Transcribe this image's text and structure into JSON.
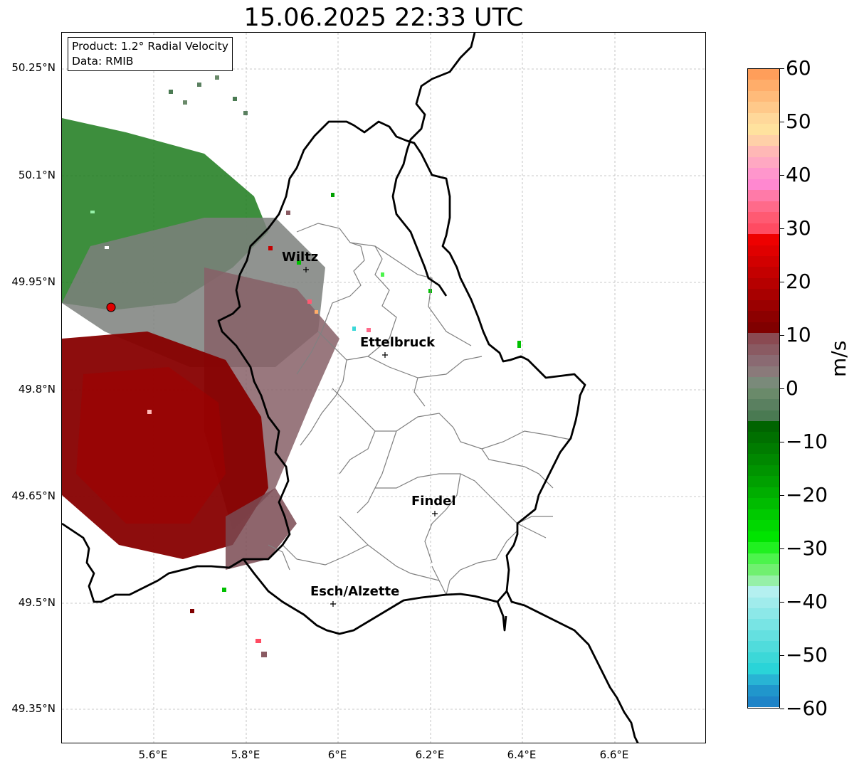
{
  "title": "15.06.2025 22:33 UTC",
  "info": {
    "product": "Product: 1.2° Radial Velocity",
    "data": "Data: RMIB"
  },
  "axes": {
    "lat_ticks": [
      "50.25°N",
      "50.1°N",
      "49.95°N",
      "49.8°N",
      "49.65°N",
      "49.5°N",
      "49.35°N"
    ],
    "lon_ticks": [
      "5.6°E",
      "5.8°E",
      "6°E",
      "6.2°E",
      "6.4°E",
      "6.6°E"
    ]
  },
  "cities": [
    {
      "name": "Wiltz",
      "lon": 5.93,
      "lat": 49.97
    },
    {
      "name": "Ettelbruck",
      "lon": 6.1,
      "lat": 49.85
    },
    {
      "name": "Findel",
      "lon": 6.21,
      "lat": 49.63
    },
    {
      "name": "Esch/Alzette",
      "lon": 5.99,
      "lat": 49.5
    }
  ],
  "radar_site": {
    "lon": 5.505,
    "lat": 49.915
  },
  "colorbar": {
    "unit": "m/s",
    "ticks": [
      "60",
      "50",
      "40",
      "30",
      "20",
      "10",
      "0",
      "−10",
      "−20",
      "−30",
      "−40",
      "−50",
      "−60"
    ],
    "colors_top_to_bottom": [
      "#ff9e5a",
      "#ffad6a",
      "#ffbb7a",
      "#ffc98a",
      "#ffd89a",
      "#ffe29e",
      "#ffd0a8",
      "#ffb8b6",
      "#ffa8c2",
      "#ff96cc",
      "#ff88d0",
      "#ff7aa8",
      "#ff6a8a",
      "#ff5a72",
      "#ff4b62",
      "#ee0000",
      "#e00000",
      "#d20000",
      "#c40000",
      "#b60000",
      "#a80000",
      "#9a0000",
      "#8c0000",
      "#800000",
      "#8a4a52",
      "#8a5a62",
      "#8a6a72",
      "#8a7a7a",
      "#7a8a7a",
      "#6a8a6a",
      "#5a8060",
      "#4a7a52",
      "#006400",
      "#007000",
      "#007c00",
      "#008800",
      "#009400",
      "#00a000",
      "#00ae00",
      "#00bc00",
      "#00ca00",
      "#00d800",
      "#00e400",
      "#20f020",
      "#4cf44c",
      "#70f070",
      "#96f0a8",
      "#b4f0f0",
      "#a0ecec",
      "#8ce8e8",
      "#78e4e4",
      "#64e0e0",
      "#50dcdc",
      "#3cd8d8",
      "#2ad4d8",
      "#28b4d4",
      "#2096cc",
      "#1e84c8"
    ]
  }
}
